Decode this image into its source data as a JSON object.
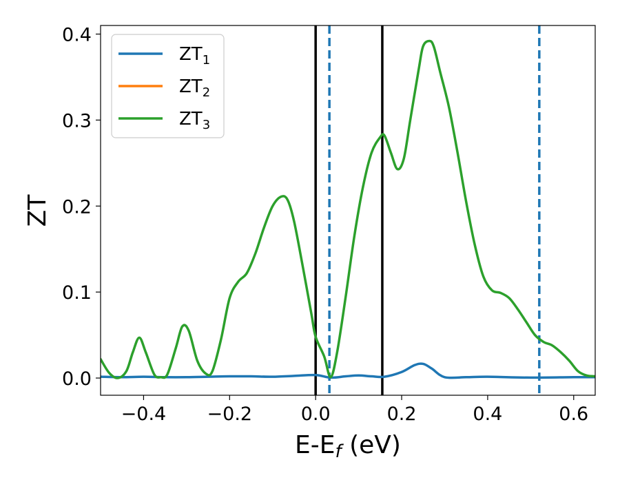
{
  "chart_data": {
    "type": "line",
    "xlabel": "E-E_f (eV)",
    "ylabel": "ZT",
    "xlim": [
      -0.5,
      0.65
    ],
    "ylim": [
      -0.02,
      0.41
    ],
    "x_ticks": [
      -0.4,
      -0.2,
      0.0,
      0.2,
      0.4,
      0.6
    ],
    "x_tick_labels": [
      "−0.4",
      "−0.2",
      "0.0",
      "0.2",
      "0.4",
      "0.6"
    ],
    "y_ticks": [
      0.0,
      0.1,
      0.2,
      0.3,
      0.4
    ],
    "y_tick_labels": [
      "0.0",
      "0.1",
      "0.2",
      "0.3",
      "0.4"
    ],
    "grid": false,
    "legend_position": "top-left",
    "series": [
      {
        "name": "ZT",
        "name_sub": "1",
        "color": "#1f77b4",
        "x": [
          -0.5,
          -0.45,
          -0.4,
          -0.35,
          -0.3,
          -0.25,
          -0.2,
          -0.15,
          -0.1,
          -0.05,
          0.0,
          0.035,
          0.07,
          0.1,
          0.13,
          0.16,
          0.2,
          0.23,
          0.25,
          0.27,
          0.3,
          0.35,
          0.4,
          0.5,
          0.6,
          0.65
        ],
        "y": [
          0.0015,
          0.001,
          0.0015,
          0.001,
          0.001,
          0.0015,
          0.002,
          0.002,
          0.0015,
          0.0025,
          0.0035,
          0.0005,
          0.002,
          0.003,
          0.002,
          0.0015,
          0.007,
          0.015,
          0.0165,
          0.011,
          0.001,
          0.001,
          0.0015,
          0.0005,
          0.001,
          0.001
        ]
      },
      {
        "name": "ZT",
        "name_sub": "2",
        "color": "#ff7f0e",
        "x": [],
        "y": []
      },
      {
        "name": "ZT",
        "name_sub": "3",
        "color": "#2ca02c",
        "x": [
          -0.5,
          -0.48,
          -0.46,
          -0.44,
          -0.425,
          -0.41,
          -0.395,
          -0.375,
          -0.36,
          -0.345,
          -0.325,
          -0.31,
          -0.295,
          -0.275,
          -0.255,
          -0.24,
          -0.22,
          -0.2,
          -0.18,
          -0.16,
          -0.14,
          -0.12,
          -0.1,
          -0.08,
          -0.065,
          -0.05,
          -0.03,
          -0.01,
          0.0,
          0.02,
          0.035,
          0.05,
          0.07,
          0.09,
          0.11,
          0.13,
          0.15,
          0.16,
          0.175,
          0.19,
          0.205,
          0.22,
          0.24,
          0.25,
          0.265,
          0.275,
          0.29,
          0.31,
          0.33,
          0.35,
          0.37,
          0.39,
          0.41,
          0.43,
          0.45,
          0.47,
          0.49,
          0.51,
          0.53,
          0.55,
          0.57,
          0.59,
          0.61,
          0.63,
          0.65
        ],
        "y": [
          0.022,
          0.006,
          0.0,
          0.008,
          0.03,
          0.047,
          0.03,
          0.004,
          0.001,
          0.004,
          0.035,
          0.06,
          0.055,
          0.02,
          0.005,
          0.008,
          0.045,
          0.093,
          0.112,
          0.122,
          0.145,
          0.175,
          0.2,
          0.211,
          0.207,
          0.182,
          0.13,
          0.075,
          0.048,
          0.025,
          0.001,
          0.03,
          0.095,
          0.165,
          0.222,
          0.262,
          0.28,
          0.282,
          0.262,
          0.243,
          0.255,
          0.3,
          0.36,
          0.386,
          0.392,
          0.385,
          0.355,
          0.315,
          0.262,
          0.205,
          0.155,
          0.118,
          0.102,
          0.099,
          0.093,
          0.08,
          0.065,
          0.05,
          0.042,
          0.038,
          0.03,
          0.02,
          0.008,
          0.003,
          0.002
        ]
      }
    ],
    "vlines": [
      {
        "x": 0.0,
        "color": "#000000",
        "style": "solid"
      },
      {
        "x": 0.155,
        "color": "#000000",
        "style": "solid"
      },
      {
        "x": 0.032,
        "color": "#1f77b4",
        "style": "dashed"
      },
      {
        "x": 0.52,
        "color": "#1f77b4",
        "style": "dashed"
      }
    ]
  }
}
